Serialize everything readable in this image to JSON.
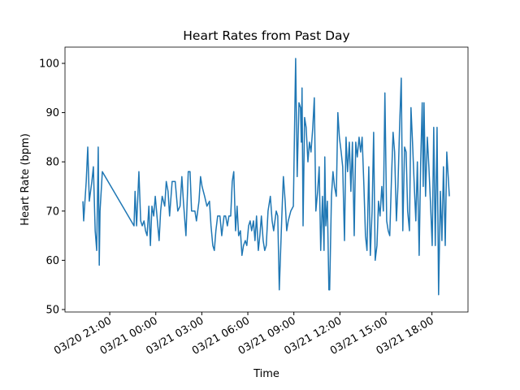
{
  "chart_data": {
    "type": "line",
    "title": "Heart Rates from Past Day",
    "xlabel": "Time",
    "ylabel": "Heart Rate (bpm)",
    "x": [
      "03/20 19:15",
      "03/20 19:18",
      "03/20 19:28",
      "03/20 19:34",
      "03/20 19:40",
      "03/20 19:50",
      "03/20 19:56",
      "03/20 20:03",
      "03/20 20:09",
      "03/20 20:15",
      "03/20 20:19",
      "03/20 20:22",
      "03/20 20:31",
      "03/20 22:35",
      "03/20 22:39",
      "03/20 22:45",
      "03/20 22:54",
      "03/20 23:01",
      "03/20 23:07",
      "03/20 23:14",
      "03/20 23:20",
      "03/20 23:26",
      "03/20 23:33",
      "03/20 23:39",
      "03/20 23:45",
      "03/20 23:52",
      "03/20 23:58",
      "03/21 00:03",
      "03/21 00:13",
      "03/21 00:19",
      "03/21 00:25",
      "03/21 00:35",
      "03/21 00:41",
      "03/21 00:48",
      "03/21 00:54",
      "03/21 01:04",
      "03/21 01:16",
      "03/21 01:26",
      "03/21 01:35",
      "03/21 01:42",
      "03/21 01:48",
      "03/21 01:58",
      "03/21 02:07",
      "03/21 02:14",
      "03/21 02:20",
      "03/21 02:33",
      "03/21 02:39",
      "03/21 02:49",
      "03/21 02:55",
      "03/21 03:01",
      "03/21 03:11",
      "03/21 03:20",
      "03/21 03:30",
      "03/21 03:36",
      "03/21 03:43",
      "03/21 03:49",
      "03/21 03:55",
      "03/21 04:02",
      "03/21 04:11",
      "03/21 04:18",
      "03/21 04:27",
      "03/21 04:33",
      "03/21 04:40",
      "03/21 04:46",
      "03/21 04:53",
      "03/21 04:59",
      "03/21 05:05",
      "03/21 05:12",
      "03/21 05:18",
      "03/21 05:24",
      "03/21 05:31",
      "03/21 05:37",
      "03/21 05:43",
      "03/21 05:50",
      "03/21 05:56",
      "03/21 06:03",
      "03/21 06:09",
      "03/21 06:15",
      "03/21 06:22",
      "03/21 06:28",
      "03/21 06:34",
      "03/21 06:41",
      "03/21 06:47",
      "03/21 06:53",
      "03/21 07:00",
      "03/21 07:06",
      "03/21 07:12",
      "03/21 07:19",
      "03/21 07:28",
      "03/21 07:35",
      "03/21 07:41",
      "03/21 07:51",
      "03/21 07:57",
      "03/21 08:03",
      "03/21 08:13",
      "03/21 08:19",
      "03/21 08:26",
      "03/21 08:32",
      "03/21 08:38",
      "03/21 08:48",
      "03/21 08:58",
      "03/21 09:07",
      "03/21 09:13",
      "03/21 09:20",
      "03/21 09:26",
      "03/21 09:29",
      "03/21 09:32",
      "03/21 09:36",
      "03/21 09:42",
      "03/21 09:48",
      "03/21 09:55",
      "03/21 10:01",
      "03/21 10:07",
      "03/21 10:14",
      "03/21 10:20",
      "03/21 10:26",
      "03/21 10:33",
      "03/21 10:39",
      "03/21 10:45",
      "03/21 10:52",
      "03/21 10:58",
      "03/21 11:01",
      "03/21 11:05",
      "03/21 11:11",
      "03/21 11:17",
      "03/21 11:20",
      "03/21 11:27",
      "03/21 11:33",
      "03/21 11:39",
      "03/21 11:46",
      "03/21 11:52",
      "03/21 11:58",
      "03/21 12:05",
      "03/21 12:11",
      "03/21 12:18",
      "03/21 12:24",
      "03/21 12:30",
      "03/21 12:37",
      "03/21 12:43",
      "03/21 12:49",
      "03/21 12:56",
      "03/21 13:02",
      "03/21 13:08",
      "03/21 13:15",
      "03/21 13:21",
      "03/21 13:27",
      "03/21 13:34",
      "03/21 13:40",
      "03/21 13:46",
      "03/21 13:53",
      "03/21 13:59",
      "03/21 14:06",
      "03/21 14:12",
      "03/21 14:18",
      "03/21 14:25",
      "03/21 14:31",
      "03/21 14:37",
      "03/21 14:44",
      "03/21 14:50",
      "03/21 14:56",
      "03/21 15:03",
      "03/21 15:09",
      "03/21 15:15",
      "03/21 15:22",
      "03/21 15:28",
      "03/21 15:34",
      "03/21 15:41",
      "03/21 15:47",
      "03/21 15:54",
      "03/21 16:00",
      "03/21 16:06",
      "03/21 16:13",
      "03/21 16:19",
      "03/21 16:25",
      "03/21 16:32",
      "03/21 16:38",
      "03/21 16:44",
      "03/21 16:51",
      "03/21 16:57",
      "03/21 17:03",
      "03/21 17:10",
      "03/21 17:16",
      "03/21 17:22",
      "03/21 17:26",
      "03/21 17:29",
      "03/21 17:35",
      "03/21 17:42",
      "03/21 17:48",
      "03/21 17:54",
      "03/21 18:01",
      "03/21 18:07",
      "03/21 18:13",
      "03/21 18:20",
      "03/21 18:26",
      "03/21 18:33",
      "03/21 18:39",
      "03/21 18:45",
      "03/21 18:52",
      "03/21 18:58",
      "03/21 19:08"
    ],
    "values": [
      72,
      68,
      76,
      83,
      72,
      76,
      79,
      66,
      62,
      83,
      59,
      70,
      78,
      67,
      74,
      67,
      78,
      68,
      67,
      68,
      66,
      65,
      71,
      63,
      71,
      69,
      73,
      70,
      64,
      70,
      73,
      71,
      76,
      74,
      69,
      76,
      76,
      70,
      71,
      77,
      72,
      65,
      78,
      78,
      70,
      70,
      68,
      72,
      77,
      75,
      73,
      71,
      72,
      67,
      63,
      62,
      66,
      69,
      69,
      65,
      69,
      69,
      67,
      69,
      69,
      76,
      78,
      66,
      71,
      65,
      66,
      61,
      63,
      64,
      63,
      67,
      68,
      66,
      68,
      64,
      69,
      62,
      65,
      69,
      64,
      62,
      63,
      70,
      73,
      68,
      66,
      70,
      69,
      54,
      69,
      77,
      72,
      66,
      68,
      70,
      71,
      101,
      77,
      92,
      91,
      84,
      95,
      67,
      89,
      87,
      80,
      84,
      82,
      87,
      93,
      70,
      74,
      79,
      62,
      73,
      62,
      81,
      67,
      72,
      54,
      54,
      73,
      78,
      75,
      73,
      90,
      85,
      82,
      79,
      64,
      85,
      78,
      84,
      74,
      84,
      65,
      84,
      81,
      85,
      82,
      85,
      75,
      65,
      62,
      79,
      61,
      70,
      86,
      60,
      63,
      72,
      69,
      75,
      70,
      94,
      68,
      66,
      65,
      77,
      86,
      82,
      68,
      75,
      88,
      97,
      66,
      83,
      82,
      70,
      66,
      91,
      84,
      75,
      68,
      80,
      61,
      80,
      92,
      75,
      92,
      73,
      85,
      79,
      72,
      63,
      87,
      63,
      87,
      53,
      74,
      64,
      79,
      63,
      82,
      73
    ],
    "color": "#1f77b4",
    "xlim": [
      "03/20 18:05",
      "03/21 20:21"
    ],
    "xticks": [
      "03/20 21:00",
      "03/21 00:00",
      "03/21 03:00",
      "03/21 06:00",
      "03/21 09:00",
      "03/21 12:00",
      "03/21 15:00",
      "03/21 18:00"
    ],
    "ylim": [
      49.5,
      103.3
    ],
    "yticks": [
      50,
      60,
      70,
      80,
      90,
      100
    ],
    "grid": false
  }
}
